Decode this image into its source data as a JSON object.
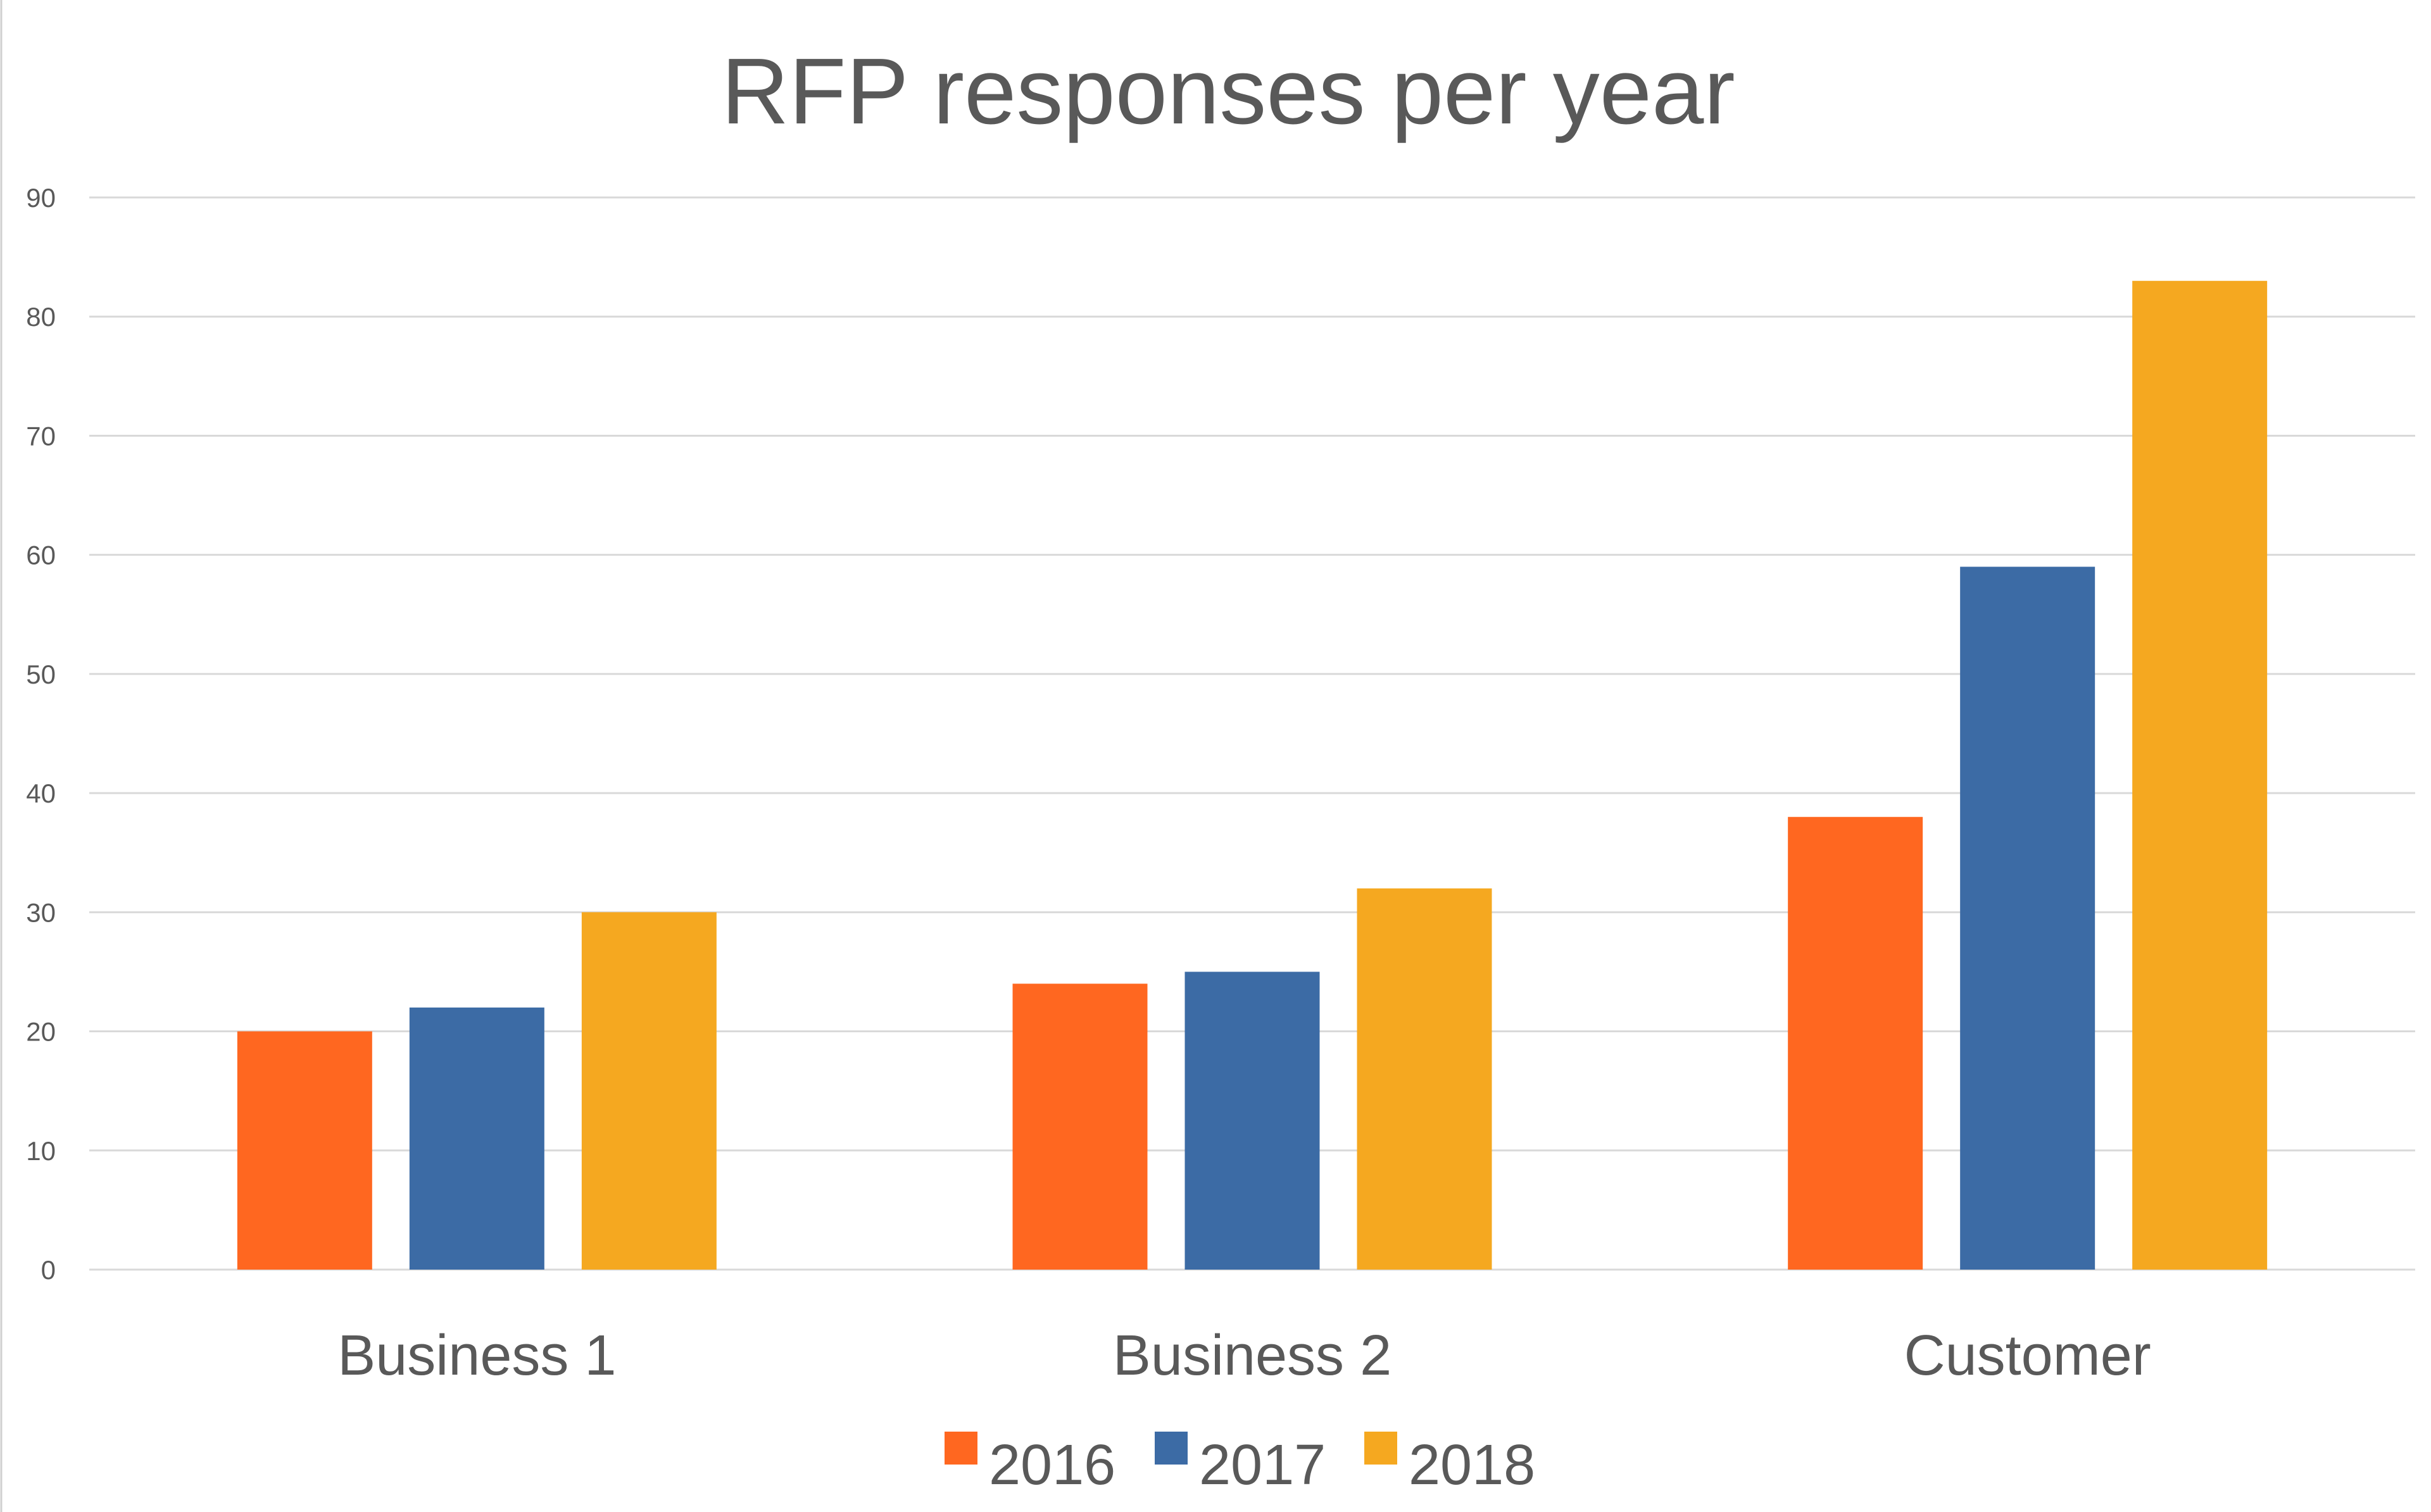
{
  "chart_data": {
    "type": "bar",
    "title": "RFP responses per year",
    "xlabel": "",
    "ylabel": "",
    "categories": [
      "Business 1",
      "Business 2",
      "Customer"
    ],
    "series": [
      {
        "name": "2016",
        "color": "#FF6720",
        "values": [
          20,
          24,
          38
        ]
      },
      {
        "name": "2017",
        "color": "#3C6BA5",
        "values": [
          22,
          25,
          59
        ]
      },
      {
        "name": "2018",
        "color": "#F5A820",
        "values": [
          30,
          32,
          83
        ]
      }
    ],
    "ylim": [
      0,
      90
    ],
    "yticks": [
      "0",
      "10",
      "20",
      "30",
      "40",
      "50",
      "60",
      "70",
      "80",
      "90"
    ],
    "grid": true,
    "legend_position": "bottom"
  }
}
